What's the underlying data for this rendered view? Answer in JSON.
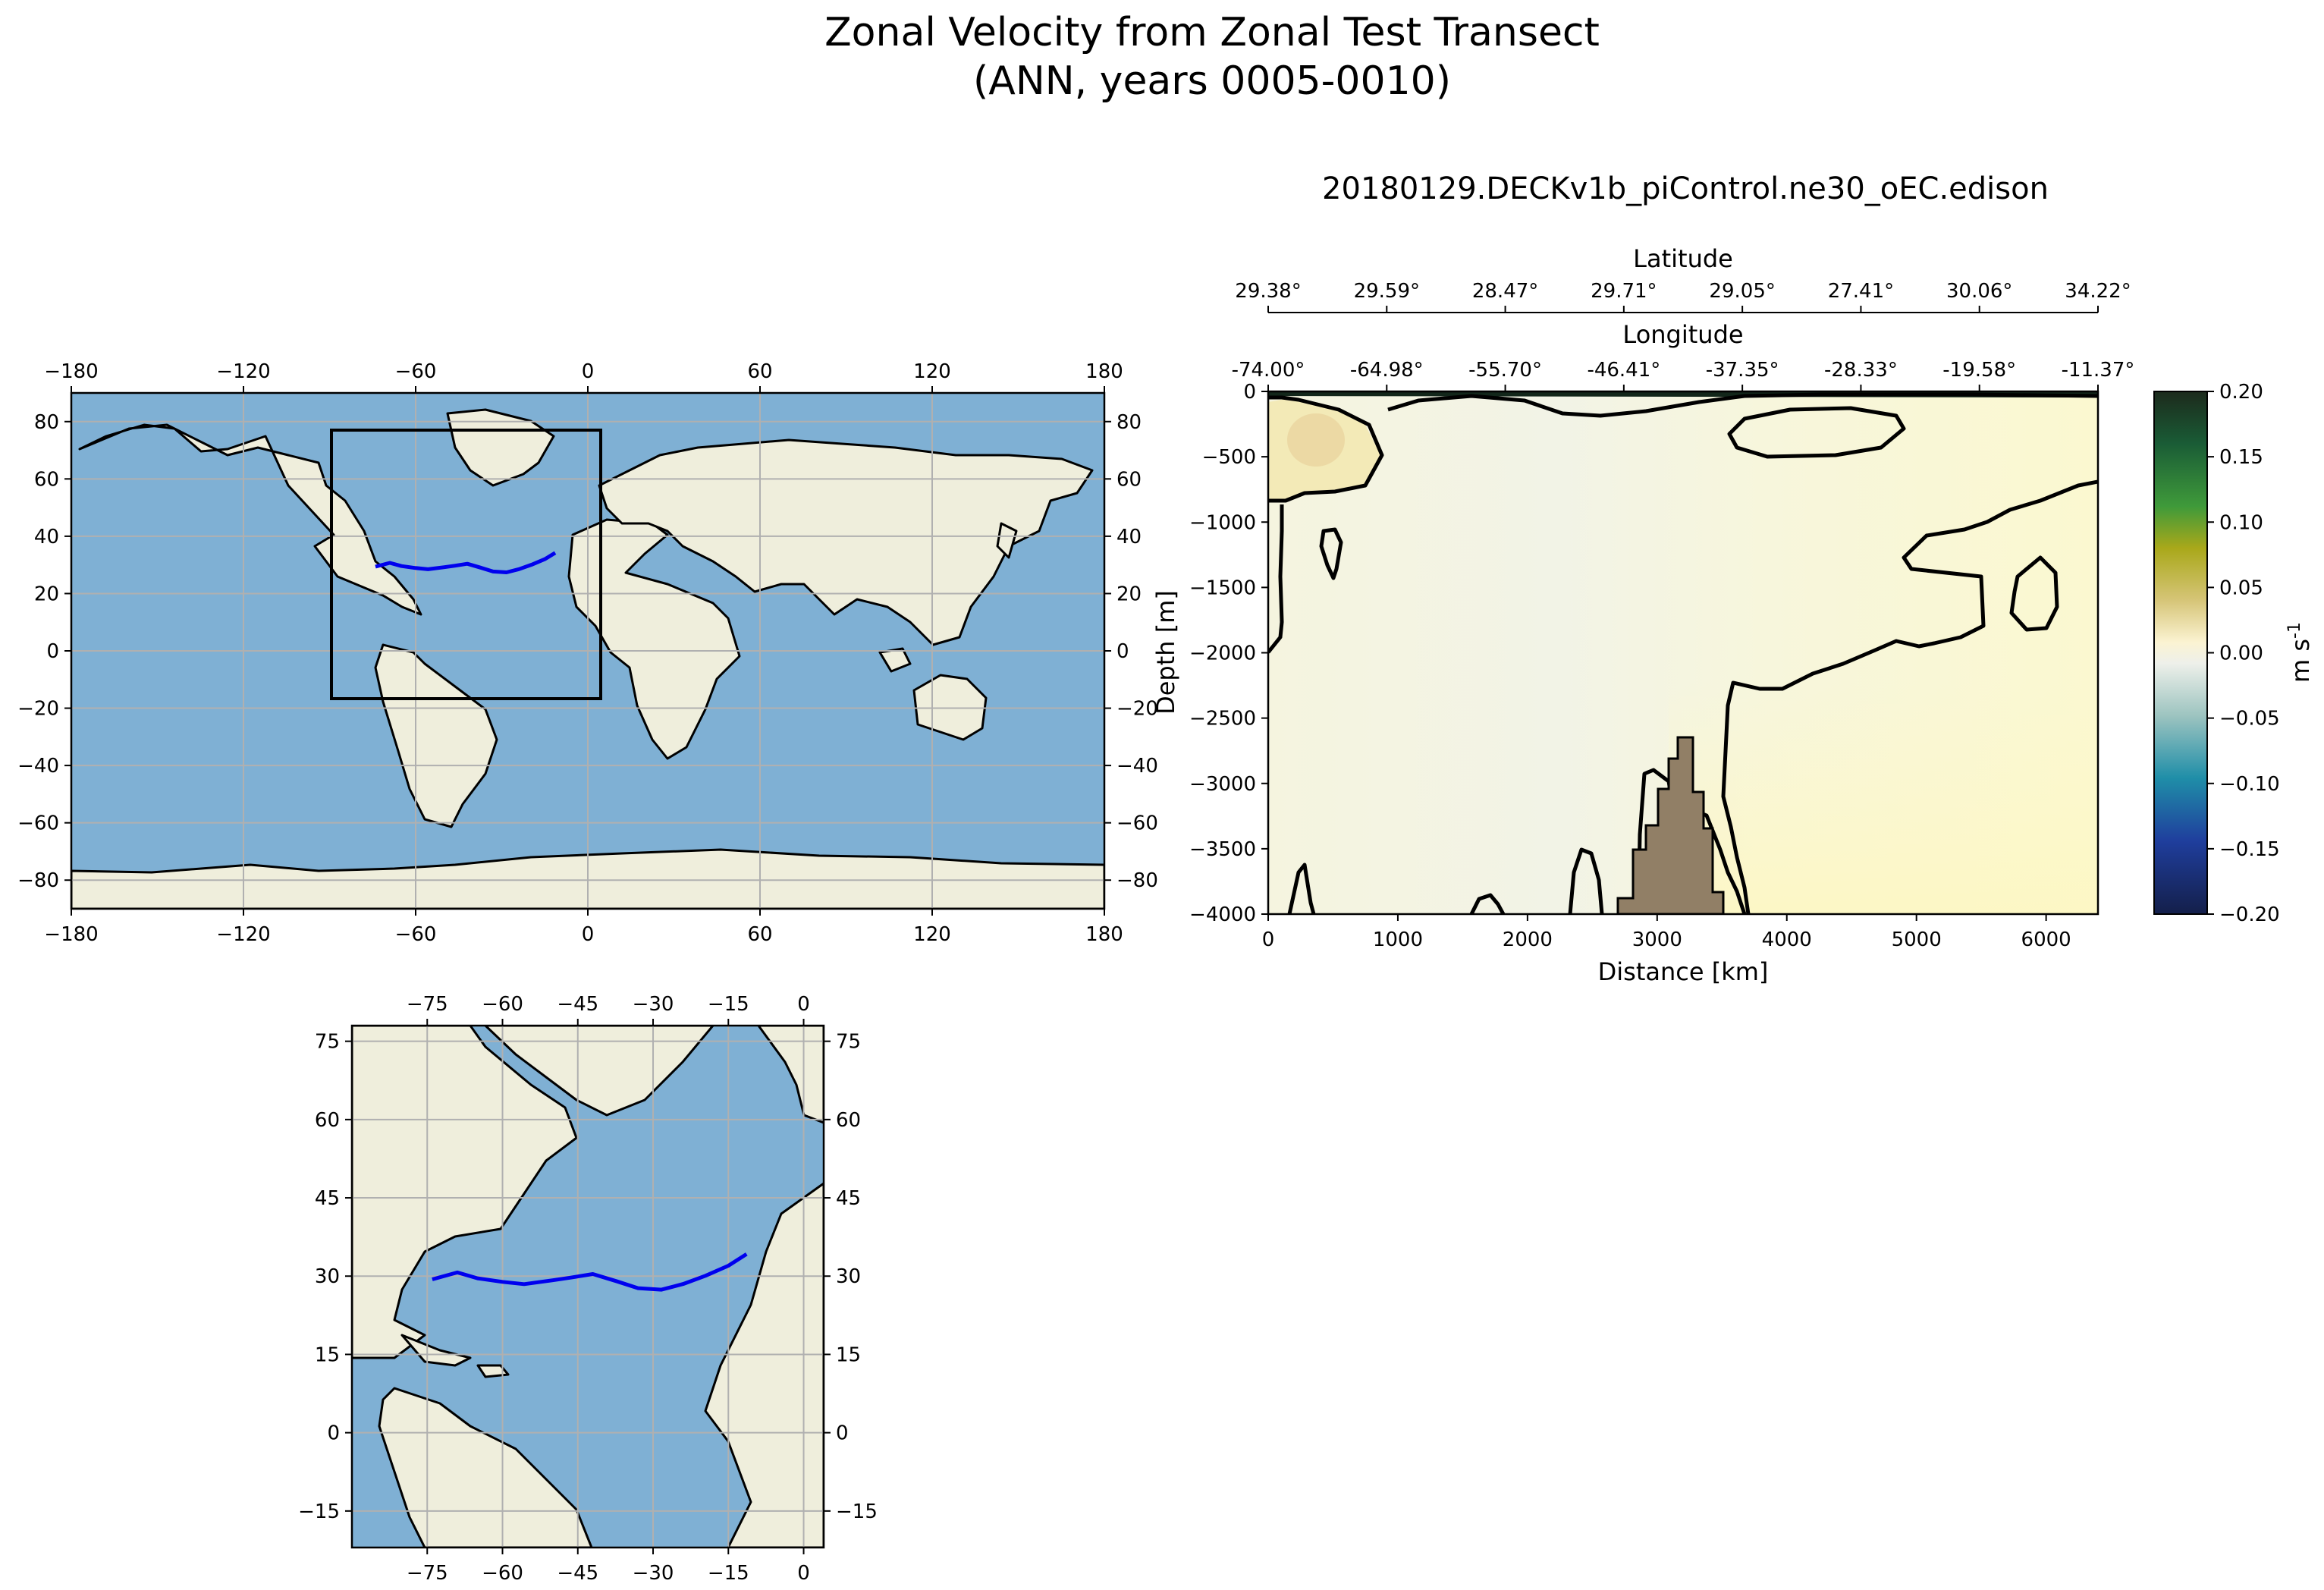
{
  "figure": {
    "title_line1": "Zonal Velocity from Zonal Test Transect",
    "title_line2": "(ANN, years 0005-0010)",
    "run_title": "20180129.DECKv1b_piControl.ne30_oEC.edison"
  },
  "chart_data": [
    {
      "type": "map",
      "name": "global-map",
      "projection": "PlateCarree",
      "xlim": [
        -180,
        180
      ],
      "ylim": [
        -90,
        90
      ],
      "x_ticks": [
        -180,
        -120,
        -60,
        0,
        60,
        120,
        180
      ],
      "y_ticks": [
        -80,
        -60,
        -40,
        -20,
        0,
        20,
        40,
        60,
        80
      ],
      "inset_box": {
        "lon": [
          -90,
          4
        ],
        "lat": [
          -16,
          77
        ]
      },
      "transect_color": "#0000ee",
      "transect": {
        "lon": [
          -74.0,
          -69.0,
          -64.98,
          -60.0,
          -55.7,
          -50.0,
          -46.41,
          -42.0,
          -37.35,
          -33.0,
          -28.33,
          -24.0,
          -19.58,
          -15.0,
          -11.37
        ],
        "lat": [
          29.38,
          30.7,
          29.59,
          28.9,
          28.47,
          29.2,
          29.71,
          30.4,
          29.05,
          27.7,
          27.41,
          28.5,
          30.06,
          32.0,
          34.22
        ]
      }
    },
    {
      "type": "map",
      "name": "regional-map",
      "projection": "PlateCarree",
      "xlim": [
        -90,
        4
      ],
      "ylim": [
        -22,
        78
      ],
      "x_ticks": [
        -75,
        -60,
        -45,
        -30,
        -15,
        0
      ],
      "y_ticks": [
        -15,
        0,
        15,
        30,
        45,
        60,
        75
      ]
    },
    {
      "type": "heatmap",
      "name": "velocity-section",
      "xlabel": "Distance [km]",
      "ylabel": "Depth [m]",
      "xlim": [
        0,
        6400
      ],
      "ylim": [
        -4000,
        0
      ],
      "x_ticks": [
        0,
        1000,
        2000,
        3000,
        4000,
        5000,
        6000
      ],
      "y_ticks": [
        0,
        -500,
        -1000,
        -1500,
        -2000,
        -2500,
        -3000,
        -3500,
        -4000
      ],
      "top_axis_longitude": {
        "label": "Longitude",
        "ticks": [
          "-74.00°",
          "-64.98°",
          "-55.70°",
          "-46.41°",
          "-37.35°",
          "-28.33°",
          "-19.58°",
          "-11.37°"
        ]
      },
      "top_axis_latitude": {
        "label": "Latitude",
        "ticks": [
          "29.38°",
          "29.59°",
          "28.47°",
          "29.71°",
          "29.05°",
          "27.41°",
          "30.06°",
          "34.22°"
        ]
      },
      "colorbar": {
        "label": "m s",
        "label_exponent": "-1",
        "range": [
          -0.2,
          0.2
        ],
        "ticks": [
          "0.20",
          "0.15",
          "0.10",
          "0.05",
          "0.00",
          "−0.05",
          "−0.10",
          "−0.15",
          "−0.20"
        ]
      },
      "contour_level": 0.0,
      "bathymetry_color": "#917f66"
    }
  ]
}
